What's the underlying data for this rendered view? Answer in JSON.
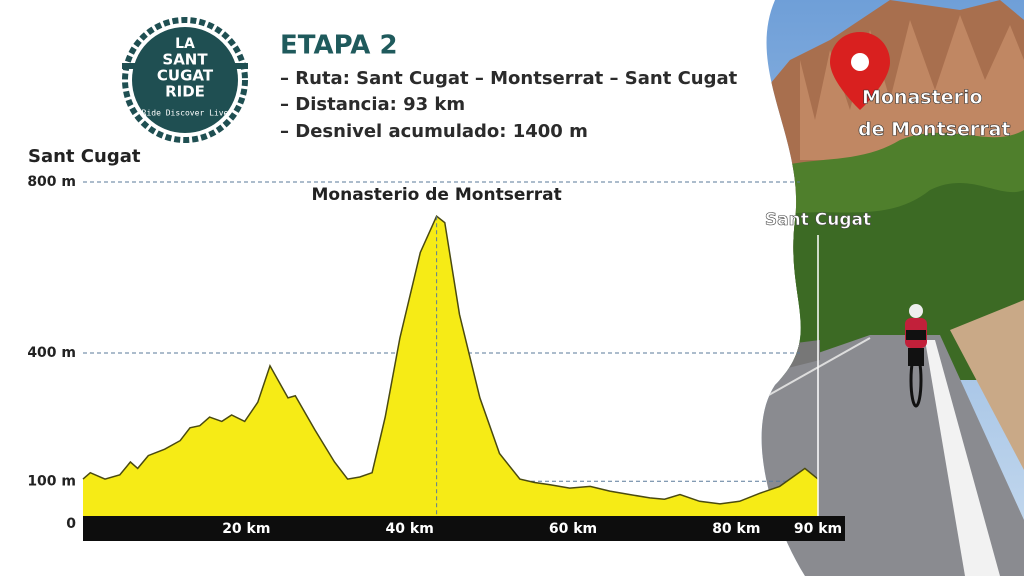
{
  "header": {
    "title": "ETAPA 2",
    "lines": [
      "– Ruta: Sant Cugat – Montserrat – Sant Cugat",
      "– Distancia: 93 km",
      "– Desnivel acumulado: 1400 m"
    ]
  },
  "logo": {
    "lines": [
      "LA",
      "SANT",
      "CUGAT",
      "RIDE"
    ],
    "tagline": "Ride Discover Live"
  },
  "photo_label": [
    "Monasterio",
    "de Montserrat"
  ],
  "chart_data": {
    "type": "area",
    "annotations": {
      "start": "Sant Cugat",
      "peak": "Monasterio de Montserrat",
      "end": "Sant Cugat"
    },
    "x": [
      0,
      0.9,
      2.7,
      4.5,
      5.8,
      6.7,
      8,
      10,
      11.9,
      13.1,
      14.3,
      15.5,
      17,
      18.2,
      19.8,
      21.4,
      22.9,
      25.1,
      26,
      28.4,
      30.8,
      32.4,
      33.9,
      35.4,
      37,
      38.8,
      41.3,
      43.3,
      44.3,
      46.1,
      48.6,
      51,
      53.5,
      55.3,
      57.2,
      59.6,
      62.1,
      64.5,
      66.9,
      69.4,
      71.2,
      73.1,
      75.5,
      78,
      80.4,
      82.9,
      85.3,
      88.4,
      90
    ],
    "values": [
      105,
      120,
      105,
      115,
      145,
      130,
      160,
      175,
      195,
      225,
      230,
      250,
      240,
      255,
      240,
      285,
      370,
      295,
      300,
      220,
      145,
      105,
      110,
      120,
      250,
      435,
      635,
      720,
      705,
      490,
      295,
      165,
      105,
      97,
      92,
      84,
      88,
      77,
      69,
      61,
      58,
      69,
      53,
      47,
      53,
      72,
      88,
      130,
      105
    ],
    "color": "#f6eb16",
    "xlim": [
      0,
      90
    ],
    "xticks": [
      {
        "value": 20,
        "label": "20 km"
      },
      {
        "value": 40,
        "label": "40 km"
      },
      {
        "value": 60,
        "label": "60 km"
      },
      {
        "value": 80,
        "label": "80 km"
      },
      {
        "value": 90,
        "label": "90 km"
      }
    ],
    "ylim": [
      0,
      800
    ],
    "yticks": [
      0,
      {
        "value": 100,
        "label": "100 m"
      },
      {
        "value": 400,
        "label": "400 m"
      },
      {
        "value": 800,
        "label": "800 m"
      }
    ],
    "grid": true
  }
}
